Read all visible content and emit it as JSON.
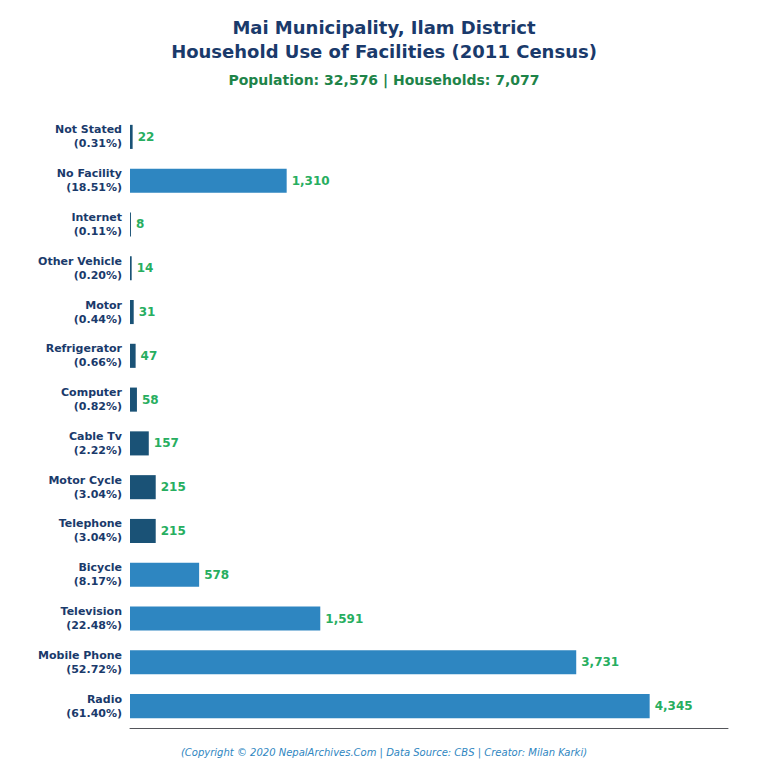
{
  "chart_data": {
    "type": "bar",
    "orientation": "horizontal",
    "title": "Mai Municipality, Ilam District\nHousehold Use of Facilities (2011 Census)",
    "subtitle": "Population: 32,576 | Households: 7,077",
    "annotations": [
      "(Copyright © 2020 NepalArchives.Com | Data Source: CBS | Creator: Milan Karki)"
    ],
    "categories": [
      "Not Stated\n(0.31%)",
      "No Facility\n(18.51%)",
      "Internet\n(0.11%)",
      "Other Vehicle\n(0.20%)",
      "Motor\n(0.44%)",
      "Refrigerator\n(0.66%)",
      "Computer\n(0.82%)",
      "Cable Tv\n(2.22%)",
      "Motor Cycle\n(3.04%)",
      "Telephone\n(3.04%)",
      "Bicycle\n(8.17%)",
      "Television\n(22.48%)",
      "Mobile Phone\n(52.72%)",
      "Radio\n(61.40%)"
    ],
    "values": [
      22,
      1310,
      8,
      14,
      31,
      47,
      58,
      157,
      215,
      215,
      578,
      1591,
      3731,
      4345
    ],
    "value_labels": [
      "22",
      "1,310",
      "8",
      "14",
      "31",
      "47",
      "58",
      "157",
      "215",
      "215",
      "578",
      "1,591",
      "3,731",
      "4,345"
    ],
    "colors": [
      "#1a5276",
      "#2e86c1",
      "#1a5276",
      "#1a5276",
      "#1a5276",
      "#1a5276",
      "#1a5276",
      "#1a5276",
      "#1a5276",
      "#1a5276",
      "#2e86c1",
      "#2e86c1",
      "#2e86c1",
      "#2e86c1"
    ],
    "xlim": [
      0,
      5000
    ],
    "data_labels": true,
    "tick_labels": "y",
    "grid": false
  }
}
